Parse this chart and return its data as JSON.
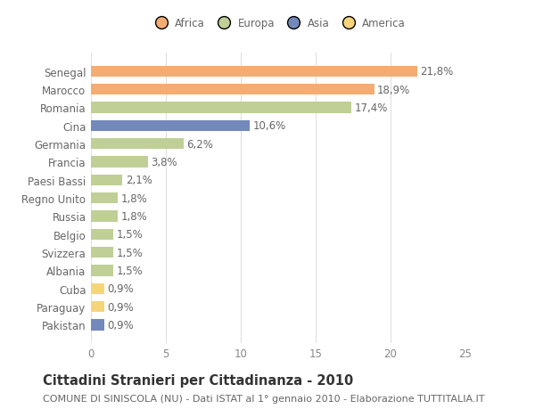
{
  "categories": [
    "Senegal",
    "Marocco",
    "Romania",
    "Cina",
    "Germania",
    "Francia",
    "Paesi Bassi",
    "Regno Unito",
    "Russia",
    "Belgio",
    "Svizzera",
    "Albania",
    "Cuba",
    "Paraguay",
    "Pakistan"
  ],
  "values": [
    21.8,
    18.9,
    17.4,
    10.6,
    6.2,
    3.8,
    2.1,
    1.8,
    1.8,
    1.5,
    1.5,
    1.5,
    0.9,
    0.9,
    0.9
  ],
  "labels": [
    "21,8%",
    "18,9%",
    "17,4%",
    "10,6%",
    "6,2%",
    "3,8%",
    "2,1%",
    "1,8%",
    "1,8%",
    "1,5%",
    "1,5%",
    "1,5%",
    "0,9%",
    "0,9%",
    "0,9%"
  ],
  "colors": [
    "#F5AC72",
    "#F5AC72",
    "#BFCF96",
    "#7388BB",
    "#BFCF96",
    "#BFCF96",
    "#BFCF96",
    "#BFCF96",
    "#BFCF96",
    "#BFCF96",
    "#BFCF96",
    "#BFCF96",
    "#F5D47A",
    "#F5D47A",
    "#7388BB"
  ],
  "legend_labels": [
    "Africa",
    "Europa",
    "Asia",
    "America"
  ],
  "legend_colors": [
    "#F5AC72",
    "#BFCF96",
    "#7388BB",
    "#F5D47A"
  ],
  "xlim": [
    0,
    25
  ],
  "xticks": [
    0,
    5,
    10,
    15,
    20,
    25
  ],
  "title": "Cittadini Stranieri per Cittadinanza - 2010",
  "subtitle": "COMUNE DI SINISCOLA (NU) - Dati ISTAT al 1° gennaio 2010 - Elaborazione TUTTITALIA.IT",
  "background_color": "#ffffff",
  "grid_color": "#e0e0e0",
  "bar_height": 0.6,
  "label_fontsize": 8.5,
  "tick_fontsize": 8.5,
  "title_fontsize": 10.5,
  "subtitle_fontsize": 8
}
